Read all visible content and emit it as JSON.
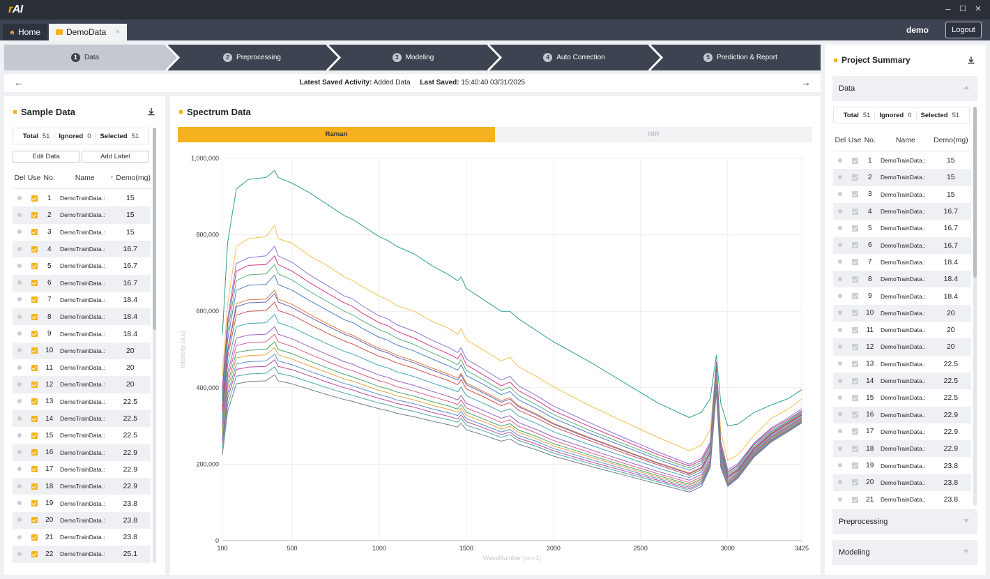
{
  "app": {
    "logo_prefix": "r",
    "logo_text": "AI",
    "user": "demo",
    "logout_label": "Logout"
  },
  "tabs": {
    "home_label": "Home",
    "demo_label": "DemoData",
    "close_glyph": "×"
  },
  "window_controls": {
    "minimize": "–",
    "maximize": "☐",
    "close": "✕"
  },
  "steps": [
    {
      "num": "1",
      "label": "Data"
    },
    {
      "num": "2",
      "label": "Preprocessing"
    },
    {
      "num": "3",
      "label": "Modeling"
    },
    {
      "num": "4",
      "label": "Auto Correction"
    },
    {
      "num": "5",
      "label": "Prediction & Report"
    }
  ],
  "activity": {
    "activity_label": "Latest Saved Activity:",
    "activity_value": "Added Data",
    "saved_label": "Last Saved:",
    "saved_value": "15:40:40 03/31/2025",
    "back_arrow": "←",
    "forward_arrow": "→"
  },
  "sample": {
    "title": "Sample Data",
    "total_label": "Total",
    "total": "51",
    "ignored_label": "Ignored",
    "ignored": "0",
    "selected_label": "Selected",
    "selected": "51",
    "edit_label": "Edit Data",
    "add_label": "Add Label",
    "headers": {
      "del": "Del",
      "use": "Use",
      "no": "No.",
      "name": "Name",
      "demo": "Demo(mg)"
    },
    "sort_glyph": "▼"
  },
  "rows": [
    {
      "no": "1",
      "name": "DemoTrainData.:",
      "demo": "15"
    },
    {
      "no": "2",
      "name": "DemoTrainData.:",
      "demo": "15"
    },
    {
      "no": "3",
      "name": "DemoTrainData.:",
      "demo": "15"
    },
    {
      "no": "4",
      "name": "DemoTrainData.:",
      "demo": "16.7"
    },
    {
      "no": "5",
      "name": "DemoTrainData.:",
      "demo": "16.7"
    },
    {
      "no": "6",
      "name": "DemoTrainData.:",
      "demo": "16.7"
    },
    {
      "no": "7",
      "name": "DemoTrainData.:",
      "demo": "18.4"
    },
    {
      "no": "8",
      "name": "DemoTrainData.:",
      "demo": "18.4"
    },
    {
      "no": "9",
      "name": "DemoTrainData.:",
      "demo": "18.4"
    },
    {
      "no": "10",
      "name": "DemoTrainData.:",
      "demo": "20"
    },
    {
      "no": "11",
      "name": "DemoTrainData.:",
      "demo": "20"
    },
    {
      "no": "12",
      "name": "DemoTrainData.:",
      "demo": "20"
    },
    {
      "no": "13",
      "name": "DemoTrainData.:",
      "demo": "22.5"
    },
    {
      "no": "14",
      "name": "DemoTrainData.:",
      "demo": "22.5"
    },
    {
      "no": "15",
      "name": "DemoTrainData.:",
      "demo": "22.5"
    },
    {
      "no": "16",
      "name": "DemoTrainData.:",
      "demo": "22.9"
    },
    {
      "no": "17",
      "name": "DemoTrainData.:",
      "demo": "22.9"
    },
    {
      "no": "18",
      "name": "DemoTrainData.:",
      "demo": "22.9"
    },
    {
      "no": "19",
      "name": "DemoTrainData.:",
      "demo": "23.8"
    },
    {
      "no": "20",
      "name": "DemoTrainData.:",
      "demo": "23.8"
    },
    {
      "no": "21",
      "name": "DemoTrainData.:",
      "demo": "23.8"
    },
    {
      "no": "22",
      "name": "DemoTrainData.:",
      "demo": "25.1"
    }
  ],
  "spectrum": {
    "title": "Spectrum Data",
    "tab_raman": "Raman",
    "tab_nir": "NIR"
  },
  "summary": {
    "title": "Project Summary",
    "data_label": "Data",
    "preprocessing_label": "Preprocessing",
    "modeling_label": "Modeling"
  },
  "colors": {
    "accent": "#f5b21e",
    "dark": "#3d4350"
  },
  "chart_data": {
    "type": "line",
    "xlabel": "WaveNumber (cm-1)",
    "ylabel": "Intensity (a.u)",
    "xlim": [
      100,
      3425
    ],
    "ylim": [
      0,
      1000000
    ],
    "x_ticks": [
      100,
      500,
      1000,
      1500,
      2000,
      2500,
      3000,
      3425
    ],
    "x_tick_labels": [
      "100",
      "500",
      "1000",
      "1500",
      "2000",
      "2500",
      "3000",
      "3425"
    ],
    "y_ticks": [
      0,
      200000,
      400000,
      600000,
      800000,
      1000000
    ],
    "y_tick_labels": [
      "0",
      "200,000",
      "400,000",
      "600,000",
      "800,000",
      "1,000,000"
    ],
    "grid": true,
    "x": [
      100,
      130,
      180,
      250,
      350,
      400,
      420,
      500,
      600,
      700,
      800,
      850,
      900,
      1000,
      1050,
      1100,
      1200,
      1300,
      1400,
      1450,
      1470,
      1500,
      1600,
      1700,
      1750,
      1800,
      1900,
      2000,
      2200,
      2400,
      2600,
      2780,
      2850,
      2900,
      2935,
      2960,
      3000,
      3060,
      3150,
      3250,
      3350,
      3425
    ],
    "series": [
      {
        "color": "#2a9d8f",
        "values": [
          540000,
          780000,
          920000,
          945000,
          950000,
          968000,
          950000,
          935000,
          910000,
          880000,
          850000,
          840000,
          825000,
          795000,
          785000,
          770000,
          750000,
          720000,
          695000,
          680000,
          690000,
          660000,
          630000,
          600000,
          600000,
          580000,
          550000,
          520000,
          470000,
          415000,
          360000,
          322000,
          336000,
          372000,
          485000,
          360000,
          300000,
          305000,
          335000,
          355000,
          372000,
          395000
        ]
      },
      {
        "color": "#f2c14e",
        "values": [
          430000,
          620000,
          770000,
          790000,
          795000,
          825000,
          790000,
          778000,
          745000,
          720000,
          690000,
          680000,
          665000,
          640000,
          630000,
          615000,
          600000,
          575000,
          555000,
          540000,
          555000,
          525000,
          498000,
          470000,
          480000,
          455000,
          430000,
          402000,
          355000,
          312000,
          270000,
          235000,
          250000,
          290000,
          462000,
          285000,
          210000,
          225000,
          275000,
          320000,
          345000,
          370000
        ]
      },
      {
        "color": "#8e6fd6",
        "values": [
          400000,
          580000,
          725000,
          740000,
          745000,
          770000,
          745000,
          728000,
          695000,
          668000,
          640000,
          632000,
          615000,
          588000,
          580000,
          565000,
          548000,
          525000,
          505000,
          492000,
          505000,
          475000,
          448000,
          420000,
          430000,
          405000,
          380000,
          352000,
          310000,
          270000,
          232000,
          200000,
          215000,
          258000,
          468000,
          260000,
          185000,
          202000,
          255000,
          295000,
          322000,
          345000
        ]
      },
      {
        "color": "#d63384",
        "values": [
          390000,
          565000,
          705000,
          720000,
          722000,
          745000,
          722000,
          705000,
          675000,
          648000,
          622000,
          612000,
          596000,
          570000,
          562000,
          548000,
          530000,
          508000,
          488000,
          476000,
          490000,
          460000,
          433000,
          405000,
          415000,
          392000,
          368000,
          340000,
          300000,
          262000,
          225000,
          195000,
          210000,
          252000,
          465000,
          252000,
          180000,
          198000,
          252000,
          292000,
          318000,
          340000
        ]
      },
      {
        "color": "#5ab07a",
        "values": [
          380000,
          545000,
          680000,
          695000,
          698000,
          722000,
          698000,
          682000,
          652000,
          626000,
          600000,
          590000,
          576000,
          552000,
          543000,
          530000,
          513000,
          492000,
          472000,
          460000,
          474000,
          445000,
          420000,
          393000,
          402000,
          380000,
          356000,
          330000,
          290000,
          254000,
          218000,
          190000,
          205000,
          248000,
          460000,
          248000,
          178000,
          196000,
          250000,
          288000,
          315000,
          338000
        ]
      },
      {
        "color": "#4a7fc1",
        "values": [
          365000,
          525000,
          655000,
          668000,
          670000,
          695000,
          670000,
          655000,
          628000,
          603000,
          578000,
          570000,
          556000,
          532000,
          524000,
          512000,
          496000,
          476000,
          457000,
          446000,
          460000,
          432000,
          408000,
          382000,
          390000,
          368000,
          346000,
          320000,
          282000,
          247000,
          212000,
          184000,
          199000,
          242000,
          455000,
          242000,
          174000,
          192000,
          246000,
          285000,
          312000,
          335000
        ]
      },
      {
        "color": "#e07a3f",
        "values": [
          350000,
          500000,
          620000,
          630000,
          632000,
          655000,
          632000,
          618000,
          592000,
          568000,
          545000,
          537000,
          525000,
          503000,
          496000,
          485000,
          470000,
          452000,
          435000,
          425000,
          438000,
          412000,
          390000,
          366000,
          374000,
          353000,
          332000,
          307000,
          271000,
          237000,
          204000,
          177000,
          192000,
          236000,
          450000,
          236000,
          170000,
          188000,
          242000,
          282000,
          310000,
          332000
        ]
      },
      {
        "color": "#6c63b5",
        "values": [
          345000,
          495000,
          612000,
          622000,
          624000,
          646000,
          624000,
          610000,
          585000,
          562000,
          540000,
          532000,
          520000,
          498000,
          491000,
          480000,
          465000,
          447000,
          430000,
          420000,
          433000,
          408000,
          386000,
          362000,
          370000,
          350000,
          329000,
          305000,
          269000,
          235000,
          202000,
          175000,
          190000,
          234000,
          448000,
          234000,
          168000,
          186000,
          240000,
          280000,
          308000,
          330000
        ]
      },
      {
        "color": "#c94f4f",
        "values": [
          335000,
          480000,
          590000,
          600000,
          602000,
          624000,
          602000,
          590000,
          566000,
          543000,
          522000,
          514000,
          503000,
          482000,
          475000,
          465000,
          451000,
          434000,
          418000,
          408000,
          421000,
          397000,
          376000,
          353000,
          361000,
          341000,
          321000,
          298000,
          263000,
          230000,
          198000,
          171000,
          186000,
          230000,
          445000,
          230000,
          165000,
          184000,
          238000,
          278000,
          306000,
          328000
        ]
      },
      {
        "color": "#3fa7b5",
        "values": [
          320000,
          460000,
          560000,
          568000,
          570000,
          592000,
          570000,
          558000,
          536000,
          515000,
          495000,
          488000,
          478000,
          458000,
          452000,
          442000,
          429000,
          413000,
          398000,
          389000,
          402000,
          379000,
          359000,
          337000,
          345000,
          326000,
          307000,
          285000,
          252000,
          221000,
          190000,
          165000,
          180000,
          225000,
          440000,
          225000,
          162000,
          181000,
          235000,
          275000,
          303000,
          325000
        ]
      },
      {
        "color": "#9b5fc0",
        "values": [
          305000,
          438000,
          530000,
          538000,
          540000,
          560000,
          540000,
          528000,
          507000,
          487000,
          468000,
          461000,
          451000,
          433000,
          427000,
          418000,
          406000,
          391000,
          377000,
          368000,
          380000,
          359000,
          340000,
          320000,
          327000,
          309000,
          291000,
          271000,
          240000,
          210000,
          181000,
          158000,
          173000,
          218000,
          432000,
          218000,
          158000,
          178000,
          232000,
          272000,
          300000,
          322000
        ]
      },
      {
        "color": "#d95f8c",
        "values": [
          295000,
          425000,
          510000,
          518000,
          520000,
          540000,
          520000,
          508000,
          488000,
          469000,
          451000,
          444000,
          435000,
          418000,
          412000,
          403000,
          391000,
          377000,
          364000,
          356000,
          368000,
          347000,
          329000,
          309000,
          316000,
          299000,
          282000,
          262000,
          232000,
          203000,
          175000,
          152000,
          167000,
          212000,
          425000,
          212000,
          155000,
          176000,
          230000,
          270000,
          298000,
          320000
        ]
      },
      {
        "color": "#47a36b",
        "values": [
          285000,
          410000,
          492000,
          498000,
          500000,
          520000,
          500000,
          489000,
          470000,
          452000,
          435000,
          428000,
          420000,
          403000,
          397000,
          389000,
          378000,
          364000,
          352000,
          344000,
          356000,
          336000,
          318000,
          299000,
          306000,
          289000,
          273000,
          254000,
          225000,
          197000,
          170000,
          147000,
          162000,
          208000,
          420000,
          208000,
          152000,
          174000,
          228000,
          268000,
          296000,
          318000
        ]
      },
      {
        "color": "#e6a23c",
        "values": [
          275000,
          398000,
          478000,
          484000,
          486000,
          505000,
          486000,
          475000,
          457000,
          440000,
          423000,
          417000,
          409000,
          393000,
          387000,
          379000,
          368000,
          355000,
          343000,
          336000,
          347000,
          328000,
          311000,
          292000,
          299000,
          283000,
          267000,
          248000,
          220000,
          193000,
          166000,
          144000,
          159000,
          205000,
          415000,
          205000,
          150000,
          172000,
          226000,
          266000,
          294000,
          316000
        ]
      },
      {
        "color": "#5b8bd0",
        "values": [
          265000,
          385000,
          462000,
          468000,
          470000,
          488000,
          470000,
          460000,
          443000,
          427000,
          411000,
          405000,
          397000,
          382000,
          376000,
          368000,
          358000,
          345000,
          334000,
          327000,
          338000,
          319000,
          302000,
          284000,
          291000,
          275000,
          260000,
          241000,
          214000,
          188000,
          162000,
          140000,
          155000,
          202000,
          410000,
          202000,
          148000,
          170000,
          224000,
          264000,
          292000,
          314000
        ]
      },
      {
        "color": "#b84a9e",
        "values": [
          255000,
          372000,
          448000,
          454000,
          456000,
          473000,
          456000,
          447000,
          431000,
          415000,
          400000,
          394000,
          386000,
          372000,
          366000,
          359000,
          349000,
          336000,
          325000,
          318000,
          329000,
          311000,
          295000,
          277000,
          284000,
          268000,
          253000,
          235000,
          208000,
          183000,
          158000,
          136000,
          151000,
          198000,
          405000,
          198000,
          146000,
          168000,
          222000,
          262000,
          290000,
          312000
        ]
      },
      {
        "color": "#4aa8a0",
        "values": [
          240000,
          355000,
          430000,
          436000,
          438000,
          455000,
          438000,
          430000,
          415000,
          400000,
          386000,
          380000,
          373000,
          360000,
          355000,
          348000,
          338000,
          326000,
          316000,
          310000,
          320000,
          302000,
          287000,
          270000,
          277000,
          262000,
          247000,
          229000,
          203000,
          178000,
          154000,
          132000,
          147000,
          195000,
          398000,
          195000,
          144000,
          166000,
          220000,
          260000,
          288000,
          310000
        ]
      },
      {
        "color": "#6f7d8c",
        "values": [
          225000,
          338000,
          410000,
          416000,
          418000,
          434000,
          418000,
          410000,
          396000,
          382000,
          369000,
          364000,
          357000,
          345000,
          340000,
          333000,
          324000,
          313000,
          303000,
          297000,
          307000,
          290000,
          276000,
          260000,
          266000,
          252000,
          238000,
          221000,
          196000,
          172000,
          148000,
          127000,
          142000,
          192000,
          390000,
          192000,
          142000,
          164000,
          218000,
          258000,
          286000,
          308000
        ]
      }
    ]
  }
}
